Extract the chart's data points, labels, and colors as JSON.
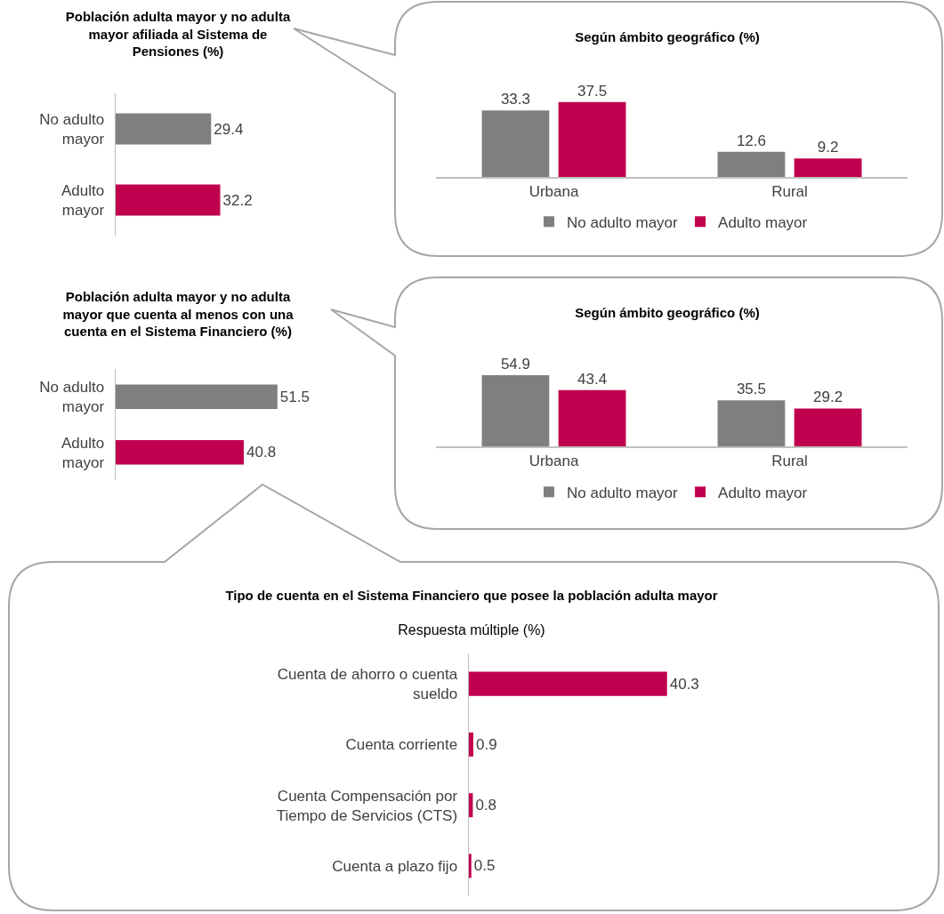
{
  "chart_data": [
    {
      "type": "bar",
      "orientation": "horizontal",
      "title": "Población adulta mayor y no adulta mayor afiliada al Sistema de Pensiones (%)",
      "categories": [
        "No adulto mayor",
        "Adulto mayor"
      ],
      "values": [
        29.4,
        32.2
      ],
      "colors": [
        "#7f7f7f",
        "#c0004e"
      ],
      "data_labels": true
    },
    {
      "type": "bar",
      "title": "Según ámbito geográfico (%)",
      "categories": [
        "Urbana",
        "Rural"
      ],
      "series": [
        {
          "name": "No adulto mayor",
          "color": "#7f7f7f",
          "values": [
            33.3,
            12.6
          ]
        },
        {
          "name": "Adulto mayor",
          "color": "#c0004e",
          "values": [
            37.5,
            9.2
          ]
        }
      ],
      "data_labels": true,
      "legend": "bottom"
    },
    {
      "type": "bar",
      "orientation": "horizontal",
      "title": "Población adulta mayor y no adulta mayor que cuenta al menos con una cuenta en el Sistema Financiero (%)",
      "categories": [
        "No adulto mayor",
        "Adulto mayor"
      ],
      "values": [
        51.5,
        40.8
      ],
      "colors": [
        "#7f7f7f",
        "#c0004e"
      ],
      "data_labels": true
    },
    {
      "type": "bar",
      "title": "Según ámbito geográfico (%)",
      "categories": [
        "Urbana",
        "Rural"
      ],
      "series": [
        {
          "name": "No adulto mayor",
          "color": "#7f7f7f",
          "values": [
            54.9,
            35.5
          ]
        },
        {
          "name": "Adulto mayor",
          "color": "#c0004e",
          "values": [
            43.4,
            29.2
          ]
        }
      ],
      "data_labels": true,
      "legend": "bottom"
    },
    {
      "type": "bar",
      "orientation": "horizontal",
      "title": "Tipo de cuenta en el Sistema Financiero que posee la población adulta mayor",
      "subtitle": "Respuesta múltiple (%)",
      "categories": [
        "Cuenta de ahorro o cuenta sueldo",
        "Cuenta corriente",
        "Cuenta Compensación por Tiempo de Servicios (CTS)",
        "Cuenta a plazo fijo"
      ],
      "values": [
        40.3,
        0.9,
        0.8,
        0.5
      ],
      "color": "#c0004e",
      "data_labels": true
    }
  ]
}
